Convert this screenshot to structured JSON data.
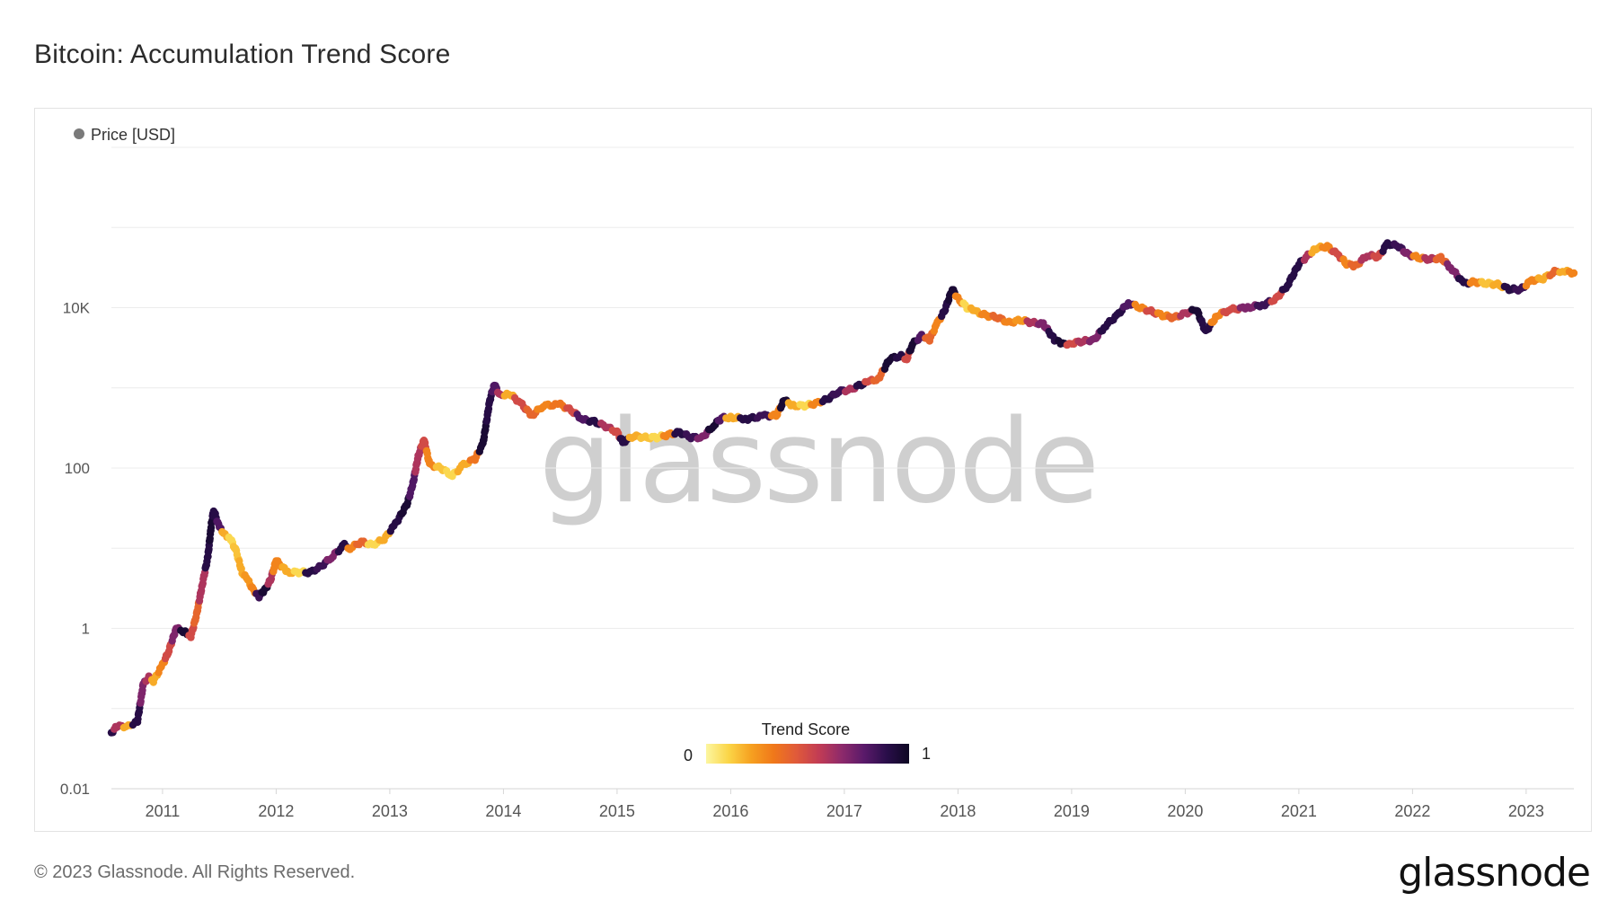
{
  "title": "Bitcoin: Accumulation Trend Score",
  "footer": "© 2023 Glassnode. All Rights Reserved.",
  "brand": "glassnode",
  "watermark": "glassnode",
  "chart_data": {
    "type": "scatter",
    "title": "Bitcoin: Accumulation Trend Score",
    "series_name": "Price [USD]",
    "y_scale": "log",
    "ylim": [
      0.01,
      1000000
    ],
    "y_ticks": [
      {
        "value": 0.01,
        "label": "0.01"
      },
      {
        "value": 1,
        "label": "1"
      },
      {
        "value": 100,
        "label": "100"
      },
      {
        "value": 10000,
        "label": "10K"
      }
    ],
    "xlim": [
      2010.55,
      2023.42
    ],
    "x_ticks": [
      "2011",
      "2012",
      "2013",
      "2014",
      "2015",
      "2016",
      "2017",
      "2018",
      "2019",
      "2020",
      "2021",
      "2022",
      "2023"
    ],
    "colorbar": {
      "title": "Trend Score",
      "min_label": "0",
      "max_label": "1",
      "colors": [
        "#fcf6a0",
        "#fbd547",
        "#f6a020",
        "#f0781a",
        "#e05a3a",
        "#c23c54",
        "#8e2a6b",
        "#5a1a6a",
        "#2a0e4a",
        "#0d0722"
      ]
    },
    "points": [
      [
        2010.55,
        0.05,
        0.9
      ],
      [
        2010.6,
        0.06,
        0.6
      ],
      [
        2010.7,
        0.06,
        0.2
      ],
      [
        2010.78,
        0.07,
        0.9
      ],
      [
        2010.83,
        0.2,
        0.7
      ],
      [
        2010.88,
        0.25,
        0.6
      ],
      [
        2010.92,
        0.22,
        0.2
      ],
      [
        2011.0,
        0.35,
        0.3
      ],
      [
        2011.05,
        0.5,
        0.5
      ],
      [
        2011.12,
        1.0,
        0.7
      ],
      [
        2011.2,
        0.9,
        0.95
      ],
      [
        2011.25,
        0.8,
        0.5
      ],
      [
        2011.3,
        1.5,
        0.4
      ],
      [
        2011.35,
        3.5,
        0.6
      ],
      [
        2011.4,
        8,
        0.9
      ],
      [
        2011.43,
        20,
        0.95
      ],
      [
        2011.45,
        30,
        0.9
      ],
      [
        2011.5,
        18,
        0.8
      ],
      [
        2011.55,
        15,
        0.2
      ],
      [
        2011.6,
        13,
        0.1
      ],
      [
        2011.65,
        9,
        0.15
      ],
      [
        2011.7,
        5,
        0.2
      ],
      [
        2011.75,
        4,
        0.25
      ],
      [
        2011.8,
        3,
        0.3
      ],
      [
        2011.85,
        2.5,
        0.85
      ],
      [
        2011.9,
        3.0,
        0.95
      ],
      [
        2011.95,
        4.0,
        0.6
      ],
      [
        2012.0,
        7,
        0.3
      ],
      [
        2012.1,
        5,
        0.2
      ],
      [
        2012.2,
        5,
        0.1
      ],
      [
        2012.3,
        5,
        0.9
      ],
      [
        2012.4,
        6,
        0.85
      ],
      [
        2012.5,
        8,
        0.7
      ],
      [
        2012.6,
        11,
        0.9
      ],
      [
        2012.65,
        10,
        0.3
      ],
      [
        2012.75,
        12,
        0.4
      ],
      [
        2012.85,
        11,
        0.1
      ],
      [
        2012.95,
        13,
        0.2
      ],
      [
        2013.05,
        20,
        0.9
      ],
      [
        2013.15,
        35,
        0.95
      ],
      [
        2013.2,
        60,
        0.8
      ],
      [
        2013.25,
        140,
        0.6
      ],
      [
        2013.3,
        230,
        0.5
      ],
      [
        2013.35,
        110,
        0.3
      ],
      [
        2013.45,
        100,
        0.15
      ],
      [
        2013.55,
        80,
        0.1
      ],
      [
        2013.65,
        110,
        0.2
      ],
      [
        2013.75,
        130,
        0.35
      ],
      [
        2013.82,
        200,
        0.95
      ],
      [
        2013.88,
        700,
        0.9
      ],
      [
        2013.92,
        1100,
        0.8
      ],
      [
        2013.97,
        800,
        0.6
      ],
      [
        2014.05,
        850,
        0.2
      ],
      [
        2014.15,
        650,
        0.5
      ],
      [
        2014.25,
        450,
        0.4
      ],
      [
        2014.35,
        600,
        0.3
      ],
      [
        2014.5,
        620,
        0.35
      ],
      [
        2014.6,
        520,
        0.5
      ],
      [
        2014.7,
        400,
        0.8
      ],
      [
        2014.8,
        380,
        0.9
      ],
      [
        2014.9,
        330,
        0.6
      ],
      [
        2015.0,
        280,
        0.5
      ],
      [
        2015.05,
        210,
        0.9
      ],
      [
        2015.15,
        250,
        0.2
      ],
      [
        2015.25,
        240,
        0.15
      ],
      [
        2015.35,
        240,
        0.1
      ],
      [
        2015.45,
        260,
        0.3
      ],
      [
        2015.55,
        280,
        0.9
      ],
      [
        2015.65,
        240,
        0.85
      ],
      [
        2015.75,
        240,
        0.7
      ],
      [
        2015.85,
        340,
        0.95
      ],
      [
        2015.92,
        420,
        0.8
      ],
      [
        2016.0,
        430,
        0.2
      ],
      [
        2016.15,
        410,
        0.9
      ],
      [
        2016.3,
        450,
        0.85
      ],
      [
        2016.4,
        450,
        0.3
      ],
      [
        2016.47,
        700,
        0.95
      ],
      [
        2016.55,
        600,
        0.2
      ],
      [
        2016.65,
        600,
        0.1
      ],
      [
        2016.75,
        640,
        0.3
      ],
      [
        2016.85,
        720,
        0.9
      ],
      [
        2016.95,
        900,
        0.85
      ],
      [
        2017.05,
        950,
        0.6
      ],
      [
        2017.15,
        1100,
        0.9
      ],
      [
        2017.22,
        1200,
        0.5
      ],
      [
        2017.3,
        1300,
        0.4
      ],
      [
        2017.4,
        2300,
        0.95
      ],
      [
        2017.5,
        2500,
        0.9
      ],
      [
        2017.55,
        2300,
        0.5
      ],
      [
        2017.6,
        3500,
        0.95
      ],
      [
        2017.68,
        4500,
        0.8
      ],
      [
        2017.75,
        4000,
        0.4
      ],
      [
        2017.82,
        6500,
        0.3
      ],
      [
        2017.88,
        9000,
        0.9
      ],
      [
        2017.95,
        17000,
        0.95
      ],
      [
        2018.0,
        13000,
        0.3
      ],
      [
        2018.08,
        10000,
        0.1
      ],
      [
        2018.15,
        9000,
        0.2
      ],
      [
        2018.25,
        8000,
        0.3
      ],
      [
        2018.35,
        7500,
        0.4
      ],
      [
        2018.45,
        6500,
        0.3
      ],
      [
        2018.55,
        7000,
        0.25
      ],
      [
        2018.65,
        6500,
        0.6
      ],
      [
        2018.75,
        6300,
        0.7
      ],
      [
        2018.85,
        4000,
        0.9
      ],
      [
        2018.92,
        3500,
        0.95
      ],
      [
        2019.0,
        3600,
        0.5
      ],
      [
        2019.1,
        3800,
        0.6
      ],
      [
        2019.2,
        4000,
        0.7
      ],
      [
        2019.3,
        6000,
        0.9
      ],
      [
        2019.4,
        8000,
        0.9
      ],
      [
        2019.5,
        11500,
        0.8
      ],
      [
        2019.6,
        10000,
        0.3
      ],
      [
        2019.7,
        9000,
        0.5
      ],
      [
        2019.8,
        8000,
        0.3
      ],
      [
        2019.9,
        7500,
        0.4
      ],
      [
        2020.0,
        8500,
        0.6
      ],
      [
        2020.1,
        9500,
        0.95
      ],
      [
        2020.18,
        5000,
        0.9
      ],
      [
        2020.28,
        8000,
        0.3
      ],
      [
        2020.4,
        9500,
        0.5
      ],
      [
        2020.55,
        10000,
        0.7
      ],
      [
        2020.7,
        11000,
        0.85
      ],
      [
        2020.8,
        13000,
        0.5
      ],
      [
        2020.9,
        19000,
        0.9
      ],
      [
        2021.0,
        35000,
        0.9
      ],
      [
        2021.08,
        45000,
        0.6
      ],
      [
        2021.15,
        55000,
        0.2
      ],
      [
        2021.25,
        58000,
        0.3
      ],
      [
        2021.35,
        45000,
        0.5
      ],
      [
        2021.42,
        35000,
        0.3
      ],
      [
        2021.5,
        33000,
        0.4
      ],
      [
        2021.6,
        45000,
        0.6
      ],
      [
        2021.7,
        43000,
        0.5
      ],
      [
        2021.78,
        63000,
        0.9
      ],
      [
        2021.88,
        58000,
        0.85
      ],
      [
        2021.95,
        47000,
        0.7
      ],
      [
        2022.05,
        42000,
        0.3
      ],
      [
        2022.15,
        40000,
        0.6
      ],
      [
        2022.25,
        42000,
        0.4
      ],
      [
        2022.35,
        30000,
        0.7
      ],
      [
        2022.45,
        20000,
        0.9
      ],
      [
        2022.55,
        21000,
        0.3
      ],
      [
        2022.65,
        20000,
        0.15
      ],
      [
        2022.75,
        19500,
        0.2
      ],
      [
        2022.85,
        17000,
        0.9
      ],
      [
        2022.95,
        16800,
        0.85
      ],
      [
        2023.05,
        22000,
        0.3
      ],
      [
        2023.15,
        23000,
        0.2
      ],
      [
        2023.25,
        28000,
        0.4
      ],
      [
        2023.32,
        29000,
        0.2
      ],
      [
        2023.42,
        27000,
        0.3
      ]
    ]
  }
}
